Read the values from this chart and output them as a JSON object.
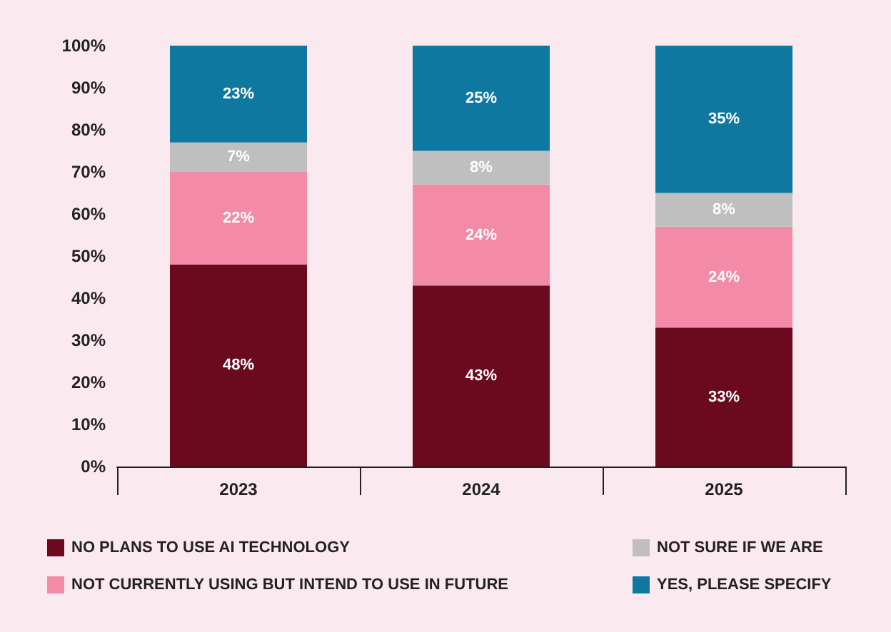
{
  "chart_data": {
    "type": "bar",
    "stacked": true,
    "categories": [
      "2023",
      "2024",
      "2025"
    ],
    "series": [
      {
        "name": "NO PLANS TO USE AI TECHNOLOGY",
        "color": "#6b0a1f",
        "values": [
          48,
          43,
          33
        ],
        "value_labels": [
          "48%",
          "43%",
          "33%"
        ]
      },
      {
        "name": "NOT CURRENTLY USING BUT INTEND TO USE IN FUTURE",
        "color": "#f28aa8",
        "values": [
          22,
          24,
          24
        ],
        "value_labels": [
          "22%",
          "24%",
          "24%"
        ]
      },
      {
        "name": "NOT SURE IF WE ARE",
        "color": "#bfbfbf",
        "values": [
          7,
          8,
          8
        ],
        "value_labels": [
          "7%",
          "8%",
          "8%"
        ]
      },
      {
        "name": "YES, PLEASE SPECIFY",
        "color": "#0e78a1",
        "values": [
          23,
          25,
          35
        ],
        "value_labels": [
          "23%",
          "25%",
          "35%"
        ]
      }
    ],
    "ylim": [
      0,
      100
    ],
    "yticks": [
      {
        "value": 0,
        "label": "0%"
      },
      {
        "value": 10,
        "label": "10%"
      },
      {
        "value": 20,
        "label": "20%"
      },
      {
        "value": 30,
        "label": "30%"
      },
      {
        "value": 40,
        "label": "40%"
      },
      {
        "value": 50,
        "label": "50%"
      },
      {
        "value": 60,
        "label": "60%"
      },
      {
        "value": 70,
        "label": "70%"
      },
      {
        "value": 80,
        "label": "80%"
      },
      {
        "value": 90,
        "label": "90%"
      },
      {
        "value": 100,
        "label": "100%"
      }
    ],
    "grid": false,
    "legend": "bottom"
  }
}
